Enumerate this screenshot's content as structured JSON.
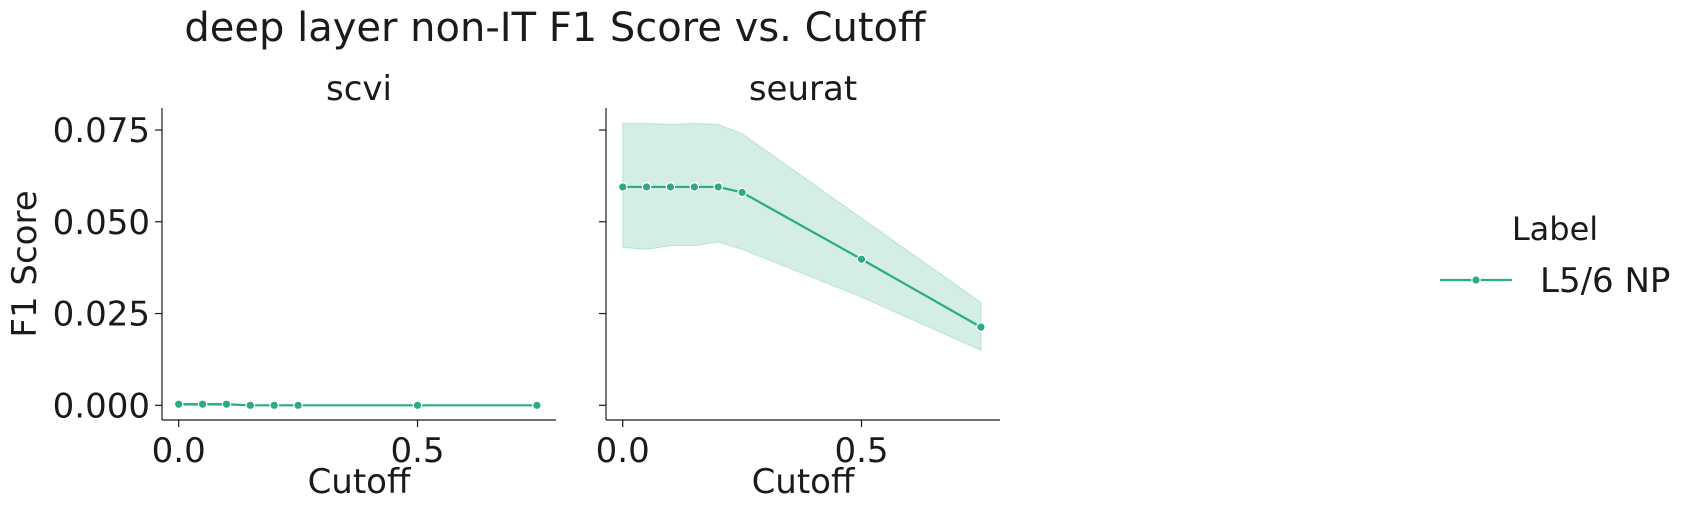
{
  "figure": {
    "title": "deep layer non-IT F1 Score vs. Cutoff"
  },
  "legend": {
    "title": "Label",
    "entries": [
      "L5/6 NP"
    ]
  },
  "colors": {
    "series": "#2aac7f",
    "band": "#2aac7f",
    "axis": "#1a1a1a"
  },
  "chart_data": [
    {
      "type": "line",
      "title": "scvi",
      "xlabel": "Cutoff",
      "ylabel": "F1 Score",
      "xlim": [
        -0.035,
        0.79
      ],
      "ylim": [
        -0.004,
        0.081
      ],
      "xticks": [
        0.0,
        0.5
      ],
      "xtick_labels": [
        "0.0",
        "0.5"
      ],
      "yticks": [
        0.0,
        0.025,
        0.05,
        0.075
      ],
      "ytick_labels": [
        "0.000",
        "0.025",
        "0.050",
        "0.075"
      ],
      "series": [
        {
          "name": "L5/6 NP",
          "x": [
            0.0,
            0.05,
            0.1,
            0.15,
            0.2,
            0.25,
            0.5,
            0.75
          ],
          "y": [
            0.0003,
            0.0003,
            0.0003,
            0.0,
            0.0,
            0.0,
            0.0,
            0.0
          ],
          "ci_low": [
            0.0,
            0.0,
            0.0,
            0.0,
            0.0,
            0.0,
            0.0,
            0.0
          ],
          "ci_high": [
            0.0006,
            0.0006,
            0.0006,
            0.0,
            0.0,
            0.0,
            0.0,
            0.0
          ]
        }
      ]
    },
    {
      "type": "line",
      "title": "seurat",
      "xlabel": "Cutoff",
      "ylabel": "",
      "xlim": [
        -0.035,
        0.79
      ],
      "ylim": [
        -0.004,
        0.081
      ],
      "xticks": [
        0.0,
        0.5
      ],
      "xtick_labels": [
        "0.0",
        "0.5"
      ],
      "yticks": [
        0.0,
        0.025,
        0.05,
        0.075
      ],
      "ytick_labels": [
        "",
        "",
        "",
        ""
      ],
      "series": [
        {
          "name": "L5/6 NP",
          "x": [
            0.0,
            0.05,
            0.1,
            0.15,
            0.2,
            0.25,
            0.5,
            0.75
          ],
          "y": [
            0.0595,
            0.0595,
            0.0595,
            0.0595,
            0.0595,
            0.058,
            0.0398,
            0.0213
          ],
          "ci_low": [
            0.043,
            0.0425,
            0.0435,
            0.0435,
            0.0445,
            0.0425,
            0.0295,
            0.015
          ],
          "ci_high": [
            0.0768,
            0.0768,
            0.0765,
            0.0768,
            0.0765,
            0.074,
            0.051,
            0.028
          ]
        }
      ]
    }
  ]
}
